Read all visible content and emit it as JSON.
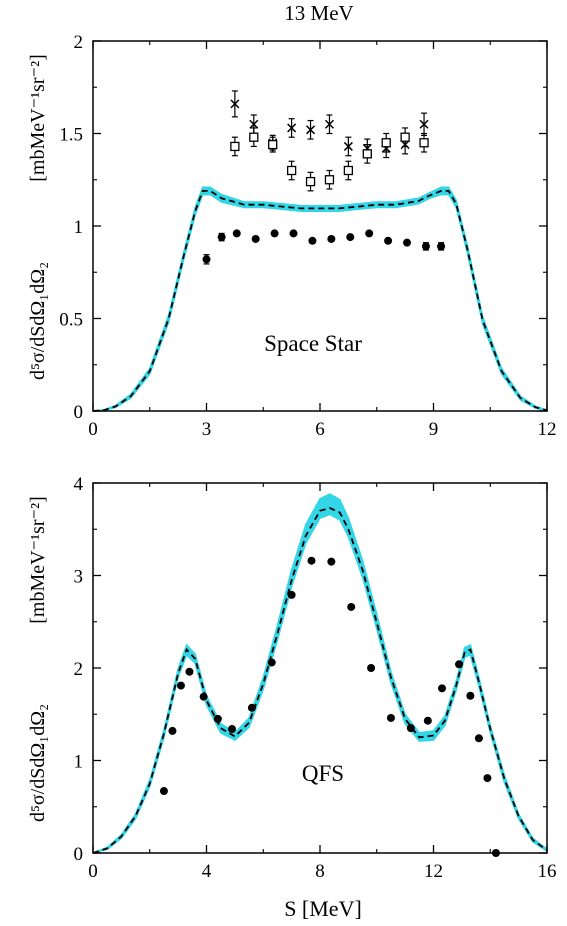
{
  "figure_title": "13 MeV",
  "y_label_lines": [
    "d⁵σ/dSdΩ₁dΩ₂",
    "[mbMeV⁻¹sr⁻²]"
  ],
  "x_label": "S   [MeV]",
  "colors": {
    "band": "#33d6e6",
    "curve": "#000000",
    "points": "#000000"
  },
  "chart_data": [
    {
      "type": "line",
      "annotation": "Space Star",
      "xlim": [
        0,
        12
      ],
      "ylim": [
        0,
        2
      ],
      "x_ticks": [
        0,
        3,
        6,
        9,
        12
      ],
      "x_tick_labels": [
        "0",
        "3",
        "6",
        "9",
        "12"
      ],
      "y_ticks": [
        0,
        0.5,
        1,
        1.5,
        2
      ],
      "y_tick_labels": [
        "0",
        "0.5",
        "1",
        "1.5",
        "2"
      ],
      "band": {
        "x": [
          0.0,
          0.3,
          0.6,
          1.0,
          1.5,
          2.0,
          2.4,
          2.7,
          2.9,
          3.1,
          3.4,
          4.0,
          4.5,
          5.0,
          5.5,
          6.0,
          6.5,
          7.0,
          7.5,
          8.0,
          8.6,
          8.9,
          9.2,
          9.4,
          9.6,
          9.9,
          10.3,
          10.8,
          11.3,
          11.7,
          12.0
        ],
        "lower": [
          0.0,
          0.003,
          0.02,
          0.07,
          0.2,
          0.48,
          0.82,
          1.06,
          1.17,
          1.17,
          1.13,
          1.1,
          1.1,
          1.09,
          1.08,
          1.08,
          1.08,
          1.09,
          1.1,
          1.1,
          1.12,
          1.15,
          1.17,
          1.17,
          1.1,
          0.85,
          0.47,
          0.2,
          0.06,
          0.015,
          0.0
        ],
        "upper": [
          0.0,
          0.007,
          0.03,
          0.09,
          0.23,
          0.52,
          0.86,
          1.1,
          1.21,
          1.21,
          1.17,
          1.13,
          1.13,
          1.12,
          1.11,
          1.11,
          1.11,
          1.12,
          1.13,
          1.13,
          1.15,
          1.18,
          1.21,
          1.21,
          1.14,
          0.89,
          0.51,
          0.23,
          0.08,
          0.025,
          0.005
        ]
      },
      "curve": {
        "name": "",
        "x": [
          0.0,
          0.3,
          0.6,
          1.0,
          1.5,
          2.0,
          2.4,
          2.7,
          2.9,
          3.1,
          3.4,
          4.0,
          4.5,
          5.0,
          5.5,
          6.0,
          6.5,
          7.0,
          7.5,
          8.0,
          8.6,
          8.9,
          9.2,
          9.4,
          9.6,
          9.9,
          10.3,
          10.8,
          11.3,
          11.7,
          12.0
        ],
        "y": [
          0.0,
          0.005,
          0.025,
          0.08,
          0.215,
          0.5,
          0.84,
          1.08,
          1.19,
          1.19,
          1.15,
          1.115,
          1.115,
          1.105,
          1.095,
          1.095,
          1.095,
          1.105,
          1.115,
          1.115,
          1.135,
          1.165,
          1.19,
          1.19,
          1.12,
          0.87,
          0.49,
          0.215,
          0.07,
          0.02,
          0.003
        ]
      },
      "series": [
        {
          "marker": "filled-circle",
          "x": [
            3.0,
            3.4,
            3.8,
            4.3,
            4.8,
            5.3,
            5.8,
            6.3,
            6.8,
            7.3,
            7.8,
            8.3,
            8.8,
            9.2
          ],
          "y": [
            0.82,
            0.94,
            0.96,
            0.93,
            0.96,
            0.96,
            0.92,
            0.93,
            0.94,
            0.96,
            0.92,
            0.91,
            0.89,
            0.89
          ],
          "err": [
            0.025,
            0.02,
            0.0,
            0.0,
            0.0,
            0.0,
            0.0,
            0.0,
            0.0,
            0.0,
            0.0,
            0.0,
            0.02,
            0.02
          ]
        },
        {
          "marker": "cross",
          "x": [
            3.75,
            4.25,
            4.75,
            5.25,
            5.75,
            6.25,
            6.75,
            7.25,
            7.75,
            8.25,
            8.75
          ],
          "y": [
            1.66,
            1.55,
            1.45,
            1.53,
            1.52,
            1.55,
            1.43,
            1.42,
            1.42,
            1.44,
            1.55
          ],
          "err": [
            0.07,
            0.05,
            0.04,
            0.05,
            0.05,
            0.05,
            0.05,
            0.05,
            0.05,
            0.05,
            0.06
          ]
        },
        {
          "marker": "open-square",
          "x": [
            3.75,
            4.25,
            4.75,
            5.25,
            5.75,
            6.25,
            6.75,
            7.25,
            7.75,
            8.25,
            8.75
          ],
          "y": [
            1.43,
            1.48,
            1.44,
            1.3,
            1.24,
            1.25,
            1.3,
            1.39,
            1.45,
            1.48,
            1.45
          ],
          "err": [
            0.05,
            0.05,
            0.04,
            0.05,
            0.05,
            0.05,
            0.05,
            0.05,
            0.05,
            0.05,
            0.05
          ]
        }
      ]
    },
    {
      "type": "line",
      "annotation": "QFS",
      "xlim": [
        0,
        16
      ],
      "ylim": [
        0,
        4
      ],
      "x_ticks": [
        0,
        4,
        8,
        12,
        16
      ],
      "x_tick_labels": [
        "0",
        "4",
        "8",
        "12",
        "16"
      ],
      "y_ticks": [
        0,
        1,
        2,
        3,
        4
      ],
      "y_tick_labels": [
        "0",
        "1",
        "2",
        "3",
        "4"
      ],
      "band": {
        "x": [
          0.0,
          0.5,
          1.0,
          1.5,
          2.0,
          2.5,
          3.0,
          3.3,
          3.6,
          4.0,
          4.5,
          5.0,
          5.5,
          6.0,
          6.5,
          7.0,
          7.5,
          8.0,
          8.35,
          8.7,
          9.0,
          9.5,
          10.0,
          10.5,
          11.0,
          11.5,
          12.0,
          12.4,
          12.8,
          13.1,
          13.3,
          13.6,
          14.0,
          14.5,
          15.0,
          15.5,
          16.0
        ],
        "lower": [
          0.0,
          0.04,
          0.16,
          0.37,
          0.72,
          1.25,
          1.9,
          2.14,
          2.05,
          1.6,
          1.3,
          1.22,
          1.36,
          1.77,
          2.3,
          2.88,
          3.35,
          3.62,
          3.66,
          3.6,
          3.42,
          2.98,
          2.42,
          1.84,
          1.4,
          1.21,
          1.22,
          1.38,
          1.76,
          2.12,
          2.14,
          1.8,
          1.3,
          0.76,
          0.37,
          0.12,
          0.02
        ],
        "upper": [
          0.0,
          0.06,
          0.2,
          0.42,
          0.79,
          1.33,
          1.99,
          2.25,
          2.15,
          1.7,
          1.4,
          1.3,
          1.46,
          1.9,
          2.46,
          3.06,
          3.55,
          3.83,
          3.88,
          3.82,
          3.62,
          3.16,
          2.58,
          1.96,
          1.5,
          1.3,
          1.32,
          1.48,
          1.86,
          2.22,
          2.25,
          1.9,
          1.38,
          0.84,
          0.42,
          0.16,
          0.04
        ]
      },
      "curve": {
        "name": "",
        "x": [
          0.0,
          0.5,
          1.0,
          1.5,
          2.0,
          2.5,
          3.0,
          3.3,
          3.6,
          4.0,
          4.5,
          5.0,
          5.5,
          6.0,
          6.5,
          7.0,
          7.5,
          8.0,
          8.35,
          8.7,
          9.0,
          9.5,
          10.0,
          10.5,
          11.0,
          11.5,
          12.0,
          12.4,
          12.8,
          13.1,
          13.3,
          13.6,
          14.0,
          14.5,
          15.0,
          15.5,
          16.0
        ],
        "y": [
          0.0,
          0.05,
          0.18,
          0.4,
          0.75,
          1.29,
          1.94,
          2.2,
          2.1,
          1.65,
          1.35,
          1.26,
          1.41,
          1.83,
          2.37,
          2.95,
          3.43,
          3.7,
          3.73,
          3.68,
          3.5,
          3.06,
          2.49,
          1.9,
          1.45,
          1.25,
          1.27,
          1.43,
          1.81,
          2.17,
          2.2,
          1.85,
          1.34,
          0.8,
          0.4,
          0.14,
          0.03
        ]
      },
      "series": [
        {
          "marker": "filled-circle",
          "x": [
            2.5,
            2.8,
            3.1,
            3.4,
            3.9,
            4.4,
            4.9,
            5.6,
            6.3,
            7.0,
            7.7,
            8.4,
            9.1,
            9.8,
            10.5,
            11.2,
            11.8,
            12.3,
            12.9,
            13.3,
            13.6,
            13.9,
            14.2
          ],
          "y": [
            0.67,
            1.32,
            1.81,
            1.96,
            1.69,
            1.45,
            1.34,
            1.57,
            2.06,
            2.79,
            3.16,
            3.15,
            2.66,
            2.0,
            1.46,
            1.35,
            1.43,
            1.78,
            2.04,
            1.7,
            1.24,
            0.81,
            0.0
          ],
          "count_note": ""
        }
      ]
    }
  ]
}
